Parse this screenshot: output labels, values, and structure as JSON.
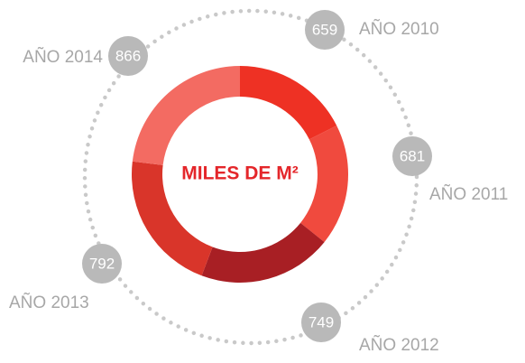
{
  "chart_data": {
    "type": "pie",
    "title": "MILES DE M²",
    "categories": [
      "AÑO 2010",
      "AÑO 2011",
      "AÑO 2012",
      "AÑO 2013",
      "AÑO 2014"
    ],
    "values": [
      659,
      681,
      749,
      792,
      866
    ],
    "colors": [
      "#ee3124",
      "#f04a3e",
      "#a81f24",
      "#d9352a",
      "#f36b62"
    ]
  }
}
